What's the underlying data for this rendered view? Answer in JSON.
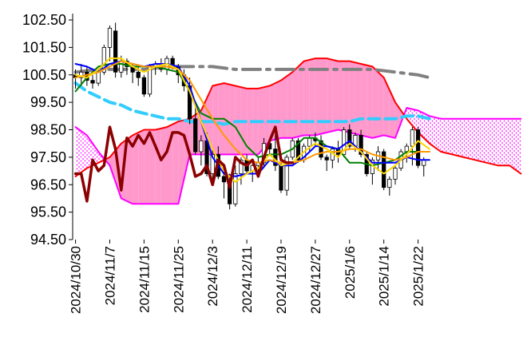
{
  "chart_data": {
    "type": "candlestick",
    "title": "",
    "xlabel": "",
    "ylabel": "",
    "ylim": [
      94.5,
      102.5
    ],
    "y_ticks": [
      "102.50",
      "101.50",
      "100.50",
      "99.50",
      "98.50",
      "97.50",
      "96.50",
      "95.50",
      "94.50"
    ],
    "x_tick_labels": [
      "2024/10/30",
      "2024/11/7",
      "2024/11/15",
      "2024/11/25",
      "2024/12/3",
      "2024/12/11",
      "2024/12/19",
      "2024/12/27",
      "2025/1/6",
      "2025/1/14",
      "2025/1/22"
    ],
    "grid": "none",
    "legend": "none",
    "colors": {
      "candle_up_fill": "#ffffff",
      "candle_down_fill": "#000000",
      "candle_edge": "#000000",
      "cloud_bearish_fill": "#ff99cc",
      "cloud_bullish_pattern": "#ff00ff",
      "span_a": "#ff00ff",
      "span_b": "#ff0000",
      "tenkan": "#0000ff",
      "kijun": "#008000",
      "chikou": "#8b0000",
      "ma_short": "#ffd700",
      "ma_mid": "#ff9900",
      "ma_long": "#33ccff",
      "ma_longest": "#808080"
    },
    "candles": [
      [
        100.5,
        100.7,
        100.0,
        100.4
      ],
      [
        100.4,
        100.9,
        100.1,
        100.6
      ],
      [
        100.6,
        100.8,
        100.1,
        100.3
      ],
      [
        100.3,
        100.5,
        100.0,
        100.2
      ],
      [
        100.2,
        100.7,
        100.1,
        100.6
      ],
      [
        100.6,
        101.6,
        100.5,
        101.5
      ],
      [
        101.5,
        102.3,
        101.0,
        102.2
      ],
      [
        102.1,
        102.4,
        100.4,
        100.6
      ],
      [
        100.6,
        101.2,
        100.4,
        101.0
      ],
      [
        101.0,
        101.1,
        100.5,
        100.8
      ],
      [
        100.8,
        100.9,
        100.2,
        100.6
      ],
      [
        100.6,
        100.8,
        100.1,
        100.4
      ],
      [
        100.4,
        100.5,
        99.7,
        99.8
      ],
      [
        99.8,
        100.9,
        99.7,
        100.8
      ],
      [
        100.8,
        101.0,
        100.5,
        100.9
      ],
      [
        100.9,
        101.1,
        100.6,
        100.7
      ],
      [
        100.7,
        101.2,
        100.5,
        101.1
      ],
      [
        101.1,
        101.2,
        100.7,
        100.8
      ],
      [
        100.8,
        100.9,
        100.2,
        100.5
      ],
      [
        100.5,
        100.7,
        99.9,
        100.1
      ],
      [
        100.1,
        100.4,
        98.7,
        98.9
      ],
      [
        98.9,
        99.4,
        97.6,
        97.7
      ],
      [
        97.7,
        98.3,
        97.2,
        98.1
      ],
      [
        98.1,
        98.4,
        96.8,
        96.9
      ],
      [
        96.9,
        97.8,
        96.6,
        97.6
      ],
      [
        97.6,
        97.9,
        96.7,
        96.8
      ],
      [
        96.8,
        97.0,
        96.0,
        96.6
      ],
      [
        96.6,
        96.9,
        95.6,
        95.8
      ],
      [
        95.8,
        97.2,
        95.7,
        96.9
      ],
      [
        96.9,
        97.5,
        96.5,
        97.4
      ],
      [
        97.4,
        97.6,
        96.9,
        97.0
      ],
      [
        97.0,
        97.4,
        96.6,
        97.2
      ],
      [
        97.2,
        97.5,
        96.8,
        97.3
      ],
      [
        97.3,
        98.2,
        97.1,
        98.0
      ],
      [
        98.0,
        98.2,
        97.6,
        97.8
      ],
      [
        97.8,
        98.4,
        97.0,
        97.2
      ],
      [
        97.2,
        97.3,
        96.2,
        96.3
      ],
      [
        96.3,
        97.6,
        96.1,
        97.5
      ],
      [
        97.5,
        98.2,
        97.4,
        98.1
      ],
      [
        98.1,
        98.2,
        97.3,
        97.4
      ],
      [
        97.4,
        98.0,
        97.3,
        97.9
      ],
      [
        97.9,
        98.3,
        97.7,
        98.2
      ],
      [
        98.2,
        98.4,
        97.9,
        98.1
      ],
      [
        98.1,
        98.3,
        97.4,
        97.5
      ],
      [
        97.5,
        97.6,
        97.0,
        97.4
      ],
      [
        97.4,
        97.9,
        97.1,
        97.8
      ],
      [
        97.8,
        98.1,
        97.3,
        97.6
      ],
      [
        97.6,
        98.6,
        97.5,
        98.5
      ],
      [
        98.5,
        98.7,
        97.8,
        97.9
      ],
      [
        97.9,
        98.4,
        97.7,
        98.3
      ],
      [
        98.3,
        98.5,
        97.5,
        97.6
      ],
      [
        97.6,
        97.7,
        96.8,
        96.9
      ],
      [
        96.9,
        97.5,
        96.5,
        97.4
      ],
      [
        97.4,
        97.9,
        97.0,
        97.7
      ],
      [
        97.7,
        97.8,
        96.3,
        96.4
      ],
      [
        96.4,
        96.8,
        96.1,
        96.7
      ],
      [
        96.7,
        97.2,
        96.5,
        97.1
      ],
      [
        97.1,
        97.8,
        97.0,
        97.7
      ],
      [
        97.7,
        98.0,
        97.3,
        97.9
      ],
      [
        97.9,
        98.6,
        97.2,
        98.5
      ],
      [
        98.5,
        98.6,
        97.1,
        97.2
      ],
      [
        97.2,
        97.5,
        96.8,
        97.4
      ]
    ],
    "series": [
      {
        "key": "span_a",
        "x": [
          0,
          2,
          4,
          6,
          8,
          10,
          12,
          14,
          16,
          18,
          20,
          22,
          24,
          26,
          28,
          30,
          32,
          34,
          36,
          38,
          40,
          42,
          44,
          46,
          48,
          50,
          52,
          54,
          56,
          58,
          60,
          62,
          64,
          66,
          68,
          70,
          72,
          74,
          76,
          78
        ],
        "values": [
          98.6,
          98.3,
          97.7,
          97.2,
          96.0,
          95.8,
          95.8,
          95.8,
          95.8,
          95.8,
          97.6,
          97.6,
          97.6,
          97.6,
          97.6,
          97.6,
          97.6,
          98.1,
          98.2,
          98.2,
          98.3,
          98.3,
          98.4,
          98.5,
          98.4,
          98.3,
          98.2,
          98.3,
          98.2,
          99.3,
          99.2,
          99.0,
          98.9,
          98.9,
          98.9,
          98.9,
          98.9,
          98.9,
          98.9,
          98.9
        ]
      },
      {
        "key": "span_b",
        "x": [
          0,
          2,
          4,
          6,
          8,
          10,
          12,
          14,
          16,
          18,
          20,
          22,
          24,
          26,
          28,
          30,
          32,
          34,
          36,
          38,
          40,
          42,
          44,
          46,
          48,
          50,
          52,
          54,
          56,
          58,
          60,
          62,
          64,
          66,
          68,
          70,
          72,
          74,
          76,
          78
        ],
        "values": [
          96.8,
          97.1,
          97.3,
          97.5,
          98.0,
          98.3,
          98.5,
          98.5,
          98.6,
          98.8,
          98.9,
          99.2,
          100.1,
          100.2,
          100.1,
          100.0,
          100.0,
          100.1,
          100.3,
          100.6,
          101.0,
          101.1,
          101.1,
          101.0,
          101.0,
          100.9,
          100.8,
          100.4,
          99.5,
          98.9,
          98.4,
          98.0,
          97.7,
          97.6,
          97.5,
          97.4,
          97.3,
          97.2,
          97.2,
          96.9
        ]
      },
      {
        "key": "tenkan",
        "x": [
          0,
          2,
          4,
          6,
          8,
          10,
          12,
          14,
          16,
          18,
          20,
          22,
          24,
          26,
          28,
          30,
          32,
          34,
          36,
          38,
          40,
          42,
          44,
          46,
          48,
          50,
          52,
          54,
          56,
          58,
          60,
          62
        ],
        "values": [
          100.9,
          100.8,
          100.6,
          100.9,
          101.0,
          100.9,
          100.8,
          100.9,
          100.9,
          100.8,
          100.1,
          98.8,
          97.5,
          96.9,
          96.8,
          96.9,
          96.9,
          97.4,
          97.2,
          97.2,
          97.5,
          97.9,
          97.9,
          97.8,
          98.1,
          97.7,
          97.3,
          97.3,
          97.3,
          97.5,
          97.4,
          97.4
        ]
      },
      {
        "key": "kijun",
        "x": [
          0,
          2,
          4,
          6,
          8,
          10,
          12,
          14,
          16,
          18,
          20,
          22,
          24,
          26,
          28,
          30,
          32,
          34,
          36,
          38,
          40,
          42,
          44,
          46,
          48,
          50,
          52,
          54,
          56,
          58,
          60,
          62
        ],
        "values": [
          99.9,
          100.4,
          100.8,
          100.9,
          100.9,
          100.8,
          100.8,
          100.8,
          100.7,
          100.6,
          99.9,
          99.1,
          98.9,
          98.9,
          98.6,
          97.9,
          97.5,
          97.6,
          97.6,
          97.8,
          98.2,
          98.2,
          97.9,
          97.8,
          97.3,
          97.3,
          97.2,
          97.3,
          97.4,
          97.7,
          97.7,
          97.7
        ]
      },
      {
        "key": "chikou",
        "x": [
          0,
          1,
          2,
          3,
          4,
          5,
          6,
          7,
          8,
          9,
          10,
          11,
          12,
          13,
          14,
          15,
          16,
          17,
          18,
          19,
          20,
          21,
          22,
          23,
          24,
          25,
          26,
          27,
          28,
          29,
          30,
          31,
          32,
          33,
          34,
          35,
          36,
          37,
          38
        ],
        "values": [
          96.9,
          96.9,
          95.9,
          97.4,
          97.0,
          97.2,
          98.6,
          97.8,
          96.3,
          98.2,
          97.9,
          98.3,
          98.0,
          98.4,
          97.9,
          97.4,
          97.7,
          98.4,
          98.4,
          98.3,
          97.6,
          96.8,
          96.9,
          97.2,
          96.5,
          97.4,
          97.2,
          96.4,
          97.5,
          97.3,
          97.2,
          97.4,
          96.8,
          97.5,
          98.1,
          98.6,
          97.4,
          97.3,
          97.3
        ]
      },
      {
        "key": "ma_short",
        "x": [
          0,
          2,
          4,
          6,
          8,
          10,
          12,
          14,
          16,
          18,
          20,
          22,
          24,
          26,
          28,
          30,
          32,
          34,
          36,
          38,
          40,
          42,
          44,
          46,
          48,
          50,
          52,
          54,
          56,
          58,
          60,
          62
        ],
        "values": [
          100.5,
          100.4,
          100.7,
          101.1,
          101.1,
          100.8,
          100.6,
          100.8,
          100.9,
          100.7,
          99.9,
          98.8,
          97.8,
          97.0,
          96.6,
          96.9,
          97.1,
          97.6,
          97.2,
          97.3,
          97.7,
          98.0,
          97.8,
          97.5,
          98.0,
          97.7,
          97.2,
          96.9,
          97.2,
          97.6,
          98.1,
          97.8
        ]
      },
      {
        "key": "ma_mid",
        "x": [
          0,
          2,
          4,
          6,
          8,
          10,
          12,
          14,
          16,
          18,
          20,
          22,
          24,
          26,
          28,
          30,
          32,
          34,
          36,
          38,
          40,
          42,
          44,
          46,
          48,
          50,
          52,
          54,
          56,
          58,
          60,
          62
        ],
        "values": [
          100.4,
          100.5,
          100.6,
          100.8,
          101.0,
          100.9,
          100.8,
          100.8,
          100.8,
          100.7,
          100.3,
          99.6,
          98.9,
          98.3,
          97.8,
          97.4,
          97.3,
          97.4,
          97.3,
          97.3,
          97.4,
          97.6,
          97.7,
          97.7,
          97.8,
          97.8,
          97.6,
          97.5,
          97.4,
          97.5,
          97.7,
          97.7
        ]
      },
      {
        "key": "ma_long",
        "x": [
          0,
          2,
          4,
          6,
          8,
          10,
          12,
          14,
          16,
          18,
          20,
          22,
          24,
          26,
          28,
          30,
          32,
          34,
          36,
          38,
          40,
          42,
          44,
          46,
          48,
          50,
          52,
          54,
          56,
          58,
          60,
          62
        ],
        "values": [
          100.2,
          99.9,
          99.7,
          99.5,
          99.4,
          99.2,
          99.1,
          99.0,
          98.9,
          98.9,
          98.8,
          98.8,
          98.8,
          98.7,
          98.8,
          98.8,
          98.8,
          98.8,
          98.8,
          98.8,
          98.8,
          98.8,
          98.8,
          98.8,
          98.8,
          98.9,
          98.9,
          98.9,
          98.9,
          99.0,
          99.0,
          98.9
        ]
      },
      {
        "key": "ma_longest",
        "x": [
          0,
          4,
          8,
          12,
          16,
          20,
          24,
          28,
          32,
          36,
          40,
          44,
          48,
          52,
          56,
          60,
          62
        ],
        "values": [
          100.6,
          100.7,
          100.7,
          100.7,
          100.8,
          100.8,
          100.8,
          100.7,
          100.7,
          100.7,
          100.7,
          100.7,
          100.7,
          100.7,
          100.6,
          100.5,
          100.4
        ]
      }
    ]
  }
}
